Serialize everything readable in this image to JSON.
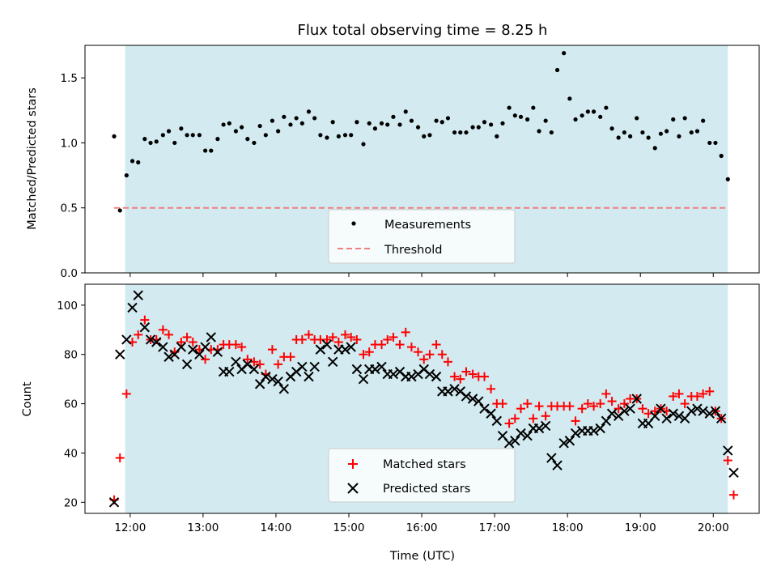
{
  "chart_data": [
    {
      "type": "scatter",
      "title": "Flux total observing time = 8.25 h",
      "xlabel": "",
      "ylabel": "Matched/Predicted stars",
      "xlim": [
        11.38,
        20.63
      ],
      "ylim": [
        0.0,
        1.75
      ],
      "yticks": [
        0.0,
        0.5,
        1.0,
        1.5
      ],
      "ytick_labels": [
        "0.0",
        "0.5",
        "1.0",
        "1.5"
      ],
      "shaded_region": {
        "start": 11.93,
        "end": 20.2,
        "color": "#d2eaf0"
      },
      "threshold": {
        "value": 0.5,
        "x_start": 11.78,
        "x_end": 20.2,
        "color": "#f08080",
        "label": "Threshold"
      },
      "legend": {
        "location": "lower center",
        "entries": [
          "Measurements",
          "Threshold"
        ]
      },
      "series": [
        {
          "name": "Measurements",
          "color": "#000000",
          "x": [
            11.78,
            11.86,
            11.95,
            12.03,
            12.11,
            12.2,
            12.28,
            12.36,
            12.45,
            12.53,
            12.61,
            12.7,
            12.78,
            12.86,
            12.95,
            13.03,
            13.11,
            13.2,
            13.28,
            13.36,
            13.45,
            13.53,
            13.61,
            13.7,
            13.78,
            13.86,
            13.95,
            14.03,
            14.11,
            14.2,
            14.28,
            14.36,
            14.45,
            14.53,
            14.61,
            14.7,
            14.78,
            14.86,
            14.95,
            15.03,
            15.11,
            15.2,
            15.28,
            15.36,
            15.45,
            15.53,
            15.61,
            15.7,
            15.78,
            15.86,
            15.95,
            16.03,
            16.11,
            16.2,
            16.28,
            16.36,
            16.45,
            16.53,
            16.61,
            16.7,
            16.78,
            16.86,
            16.95,
            17.03,
            17.11,
            17.2,
            17.28,
            17.36,
            17.45,
            17.53,
            17.61,
            17.7,
            17.78,
            17.86,
            17.95,
            18.03,
            18.11,
            18.2,
            18.28,
            18.36,
            18.45,
            18.53,
            18.61,
            18.7,
            18.78,
            18.86,
            18.95,
            19.03,
            19.11,
            19.2,
            19.28,
            19.36,
            19.45,
            19.53,
            19.61,
            19.7,
            19.78,
            19.86,
            19.95,
            20.03,
            20.11,
            20.2
          ],
          "y": [
            1.05,
            0.48,
            0.75,
            0.86,
            0.85,
            1.03,
            1.0,
            1.01,
            1.06,
            1.09,
            1.0,
            1.11,
            1.06,
            1.06,
            1.06,
            0.94,
            0.94,
            1.03,
            1.14,
            1.15,
            1.09,
            1.12,
            1.03,
            1.0,
            1.13,
            1.06,
            1.17,
            1.09,
            1.2,
            1.14,
            1.19,
            1.15,
            1.24,
            1.19,
            1.06,
            1.04,
            1.16,
            1.05,
            1.06,
            1.06,
            1.16,
            0.99,
            1.15,
            1.11,
            1.15,
            1.14,
            1.2,
            1.14,
            1.24,
            1.17,
            1.12,
            1.05,
            1.06,
            1.17,
            1.16,
            1.19,
            1.08,
            1.08,
            1.08,
            1.12,
            1.12,
            1.16,
            1.14,
            1.05,
            1.15,
            1.27,
            1.21,
            1.2,
            1.18,
            1.27,
            1.09,
            1.17,
            1.08,
            1.56,
            1.69,
            1.34,
            1.18,
            1.21,
            1.24,
            1.24,
            1.2,
            1.27,
            1.11,
            1.04,
            1.08,
            1.05,
            1.19,
            1.08,
            1.04,
            0.96,
            1.07,
            1.09,
            1.18,
            1.05,
            1.19,
            1.08,
            1.09,
            1.17,
            1.0,
            1.0,
            0.9,
            0.72
          ]
        }
      ]
    },
    {
      "type": "scatter",
      "title": "",
      "xlabel": "Time (UTC)",
      "ylabel": "Count",
      "xlim": [
        11.38,
        20.63
      ],
      "ylim": [
        15.5,
        108.5
      ],
      "xticks": [
        12,
        13,
        14,
        15,
        16,
        17,
        18,
        19,
        20
      ],
      "xtick_labels": [
        "12:00",
        "13:00",
        "14:00",
        "15:00",
        "16:00",
        "17:00",
        "18:00",
        "19:00",
        "20:00"
      ],
      "yticks": [
        20,
        40,
        60,
        80,
        100
      ],
      "ytick_labels": [
        "20",
        "40",
        "60",
        "80",
        "100"
      ],
      "shaded_region": {
        "start": 11.93,
        "end": 20.2,
        "color": "#d2eaf0"
      },
      "legend": {
        "location": "lower center",
        "entries": [
          "Matched stars",
          "Predicted stars"
        ]
      },
      "series": [
        {
          "name": "Matched stars",
          "marker": "plus",
          "color": "#ff0000",
          "x": [
            11.78,
            11.86,
            11.95,
            12.03,
            12.11,
            12.2,
            12.28,
            12.36,
            12.45,
            12.53,
            12.61,
            12.7,
            12.78,
            12.86,
            12.95,
            13.03,
            13.11,
            13.2,
            13.28,
            13.36,
            13.45,
            13.53,
            13.61,
            13.7,
            13.78,
            13.86,
            13.95,
            14.03,
            14.11,
            14.2,
            14.28,
            14.36,
            14.45,
            14.53,
            14.61,
            14.7,
            14.78,
            14.86,
            14.95,
            15.03,
            15.11,
            15.2,
            15.28,
            15.36,
            15.45,
            15.53,
            15.61,
            15.7,
            15.78,
            15.86,
            15.95,
            16.03,
            16.11,
            16.2,
            16.28,
            16.36,
            16.45,
            16.53,
            16.61,
            16.7,
            16.78,
            16.86,
            16.95,
            17.03,
            17.11,
            17.2,
            17.28,
            17.36,
            17.45,
            17.53,
            17.61,
            17.7,
            17.78,
            17.86,
            17.95,
            18.03,
            18.11,
            18.2,
            18.28,
            18.36,
            18.45,
            18.53,
            18.61,
            18.7,
            18.78,
            18.86,
            18.95,
            19.03,
            19.11,
            19.2,
            19.28,
            19.36,
            19.45,
            19.53,
            19.61,
            19.7,
            19.78,
            19.86,
            19.95,
            20.03,
            20.11,
            20.2
          ],
          "y": [
            21,
            38,
            64,
            85,
            88,
            94,
            86,
            86,
            90,
            88,
            81,
            85,
            87,
            85,
            82,
            78,
            82,
            82,
            84,
            84,
            84,
            83,
            78,
            77,
            76,
            72,
            82,
            76,
            79,
            79,
            86,
            86,
            88,
            86,
            86,
            86,
            87,
            85,
            88,
            87,
            86,
            80,
            81,
            84,
            84,
            86,
            87,
            84,
            89,
            83,
            81,
            78,
            80,
            84,
            80,
            77,
            71,
            70,
            73,
            72,
            71,
            71,
            66,
            60,
            60,
            52,
            54,
            58,
            60,
            54,
            59,
            55,
            59,
            59,
            59,
            59,
            53,
            58,
            60,
            59,
            60,
            64,
            61,
            58,
            60,
            62,
            62,
            58,
            56,
            57,
            58,
            57,
            63,
            64,
            60,
            63,
            63,
            64,
            65,
            57,
            54,
            37
          ]
        },
        {
          "name": "Predicted stars",
          "marker": "x",
          "color": "#000000",
          "x": [
            11.78,
            11.86,
            11.95,
            12.03,
            12.11,
            12.2,
            12.28,
            12.36,
            12.45,
            12.53,
            12.61,
            12.7,
            12.78,
            12.86,
            12.95,
            13.03,
            13.11,
            13.2,
            13.28,
            13.36,
            13.45,
            13.53,
            13.61,
            13.7,
            13.78,
            13.86,
            13.95,
            14.03,
            14.11,
            14.2,
            14.28,
            14.36,
            14.45,
            14.53,
            14.61,
            14.7,
            14.78,
            14.86,
            14.95,
            15.03,
            15.11,
            15.2,
            15.28,
            15.36,
            15.45,
            15.53,
            15.61,
            15.7,
            15.78,
            15.86,
            15.95,
            16.03,
            16.11,
            16.2,
            16.28,
            16.36,
            16.45,
            16.53,
            16.61,
            16.7,
            16.78,
            16.86,
            16.95,
            17.03,
            17.11,
            17.2,
            17.28,
            17.36,
            17.45,
            17.53,
            17.61,
            17.7,
            17.78,
            17.86,
            17.95,
            18.03,
            18.11,
            18.2,
            18.28,
            18.36,
            18.45,
            18.53,
            18.61,
            18.7,
            18.78,
            18.86,
            18.95,
            19.03,
            19.11,
            19.2,
            19.28,
            19.36,
            19.45,
            19.53,
            19.61,
            19.7,
            19.78,
            19.86,
            19.95,
            20.03,
            20.11,
            20.2
          ],
          "y": [
            20,
            80,
            86,
            99,
            104,
            91,
            86,
            85,
            83,
            79,
            80,
            83,
            76,
            82,
            80,
            83,
            87,
            81,
            73,
            73,
            77,
            74,
            76,
            74,
            68,
            71,
            70,
            69,
            66,
            71,
            73,
            75,
            71,
            75,
            82,
            84,
            77,
            82,
            82,
            83,
            74,
            70,
            74,
            74,
            75,
            72,
            72,
            73,
            71,
            71,
            72,
            74,
            72,
            71,
            65,
            65,
            66,
            65,
            63,
            62,
            61,
            58,
            56,
            53,
            47,
            44,
            45,
            48,
            47,
            50,
            50,
            51,
            38,
            35,
            44,
            45,
            48,
            49,
            49,
            49,
            50,
            53,
            56,
            55,
            57,
            58,
            62,
            52,
            52,
            55,
            58,
            54,
            56,
            55,
            54,
            57,
            58,
            57,
            56,
            57,
            54,
            41
          ]
        },
        {
          "name": "Predicted stars (post)",
          "marker": "x",
          "color": "#000000",
          "legend": false,
          "x": [
            20.28
          ],
          "y": [
            32
          ]
        },
        {
          "name": "Matched stars (post)",
          "marker": "plus",
          "color": "#ff0000",
          "legend": false,
          "x": [
            20.28
          ],
          "y": [
            23
          ]
        }
      ]
    }
  ]
}
